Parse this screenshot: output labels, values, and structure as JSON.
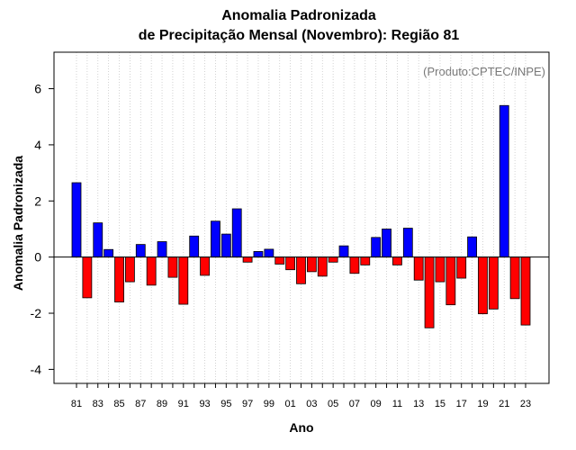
{
  "chart_data": {
    "type": "bar",
    "title": "Anomalia Padronizada",
    "subtitle": "de Precipitação Mensal (Novembro): Região 81",
    "xlabel": "Ano",
    "ylabel": "Anomalia Padronizada",
    "annotation": "(Produto:CPTEC/INPE)",
    "ylim": [
      -4.5,
      7.3
    ],
    "yticks": [
      -4,
      -2,
      0,
      2,
      4,
      6
    ],
    "grid": "vertical dotted",
    "categories": [
      "81",
      "82",
      "83",
      "84",
      "85",
      "86",
      "87",
      "88",
      "89",
      "90",
      "91",
      "92",
      "93",
      "94",
      "95",
      "96",
      "97",
      "98",
      "99",
      "00",
      "01",
      "02",
      "03",
      "04",
      "05",
      "06",
      "07",
      "08",
      "09",
      "10",
      "11",
      "12",
      "13",
      "14",
      "15",
      "16",
      "17",
      "18",
      "19",
      "20",
      "21",
      "22",
      "23"
    ],
    "tick_labels": [
      "81",
      "83",
      "85",
      "87",
      "89",
      "91",
      "93",
      "95",
      "97",
      "99",
      "01",
      "03",
      "05",
      "07",
      "09",
      "11",
      "13",
      "15",
      "17",
      "19",
      "21",
      "23"
    ],
    "values": [
      2.65,
      -1.45,
      1.22,
      0.27,
      -1.6,
      -0.88,
      0.45,
      -1.0,
      0.55,
      -0.72,
      -1.68,
      0.75,
      -0.65,
      1.28,
      0.82,
      1.72,
      -0.18,
      0.2,
      0.28,
      -0.25,
      -0.45,
      -0.95,
      -0.52,
      -0.68,
      -0.18,
      0.4,
      -0.58,
      -0.28,
      0.7,
      1.0,
      -0.28,
      1.03,
      -0.82,
      -2.52,
      -0.88,
      -1.7,
      -0.75,
      0.72,
      -2.02,
      -1.85,
      5.4,
      -1.48,
      -2.42
    ],
    "colors": {
      "positive": "#0000ff",
      "negative": "#ff0000"
    }
  }
}
